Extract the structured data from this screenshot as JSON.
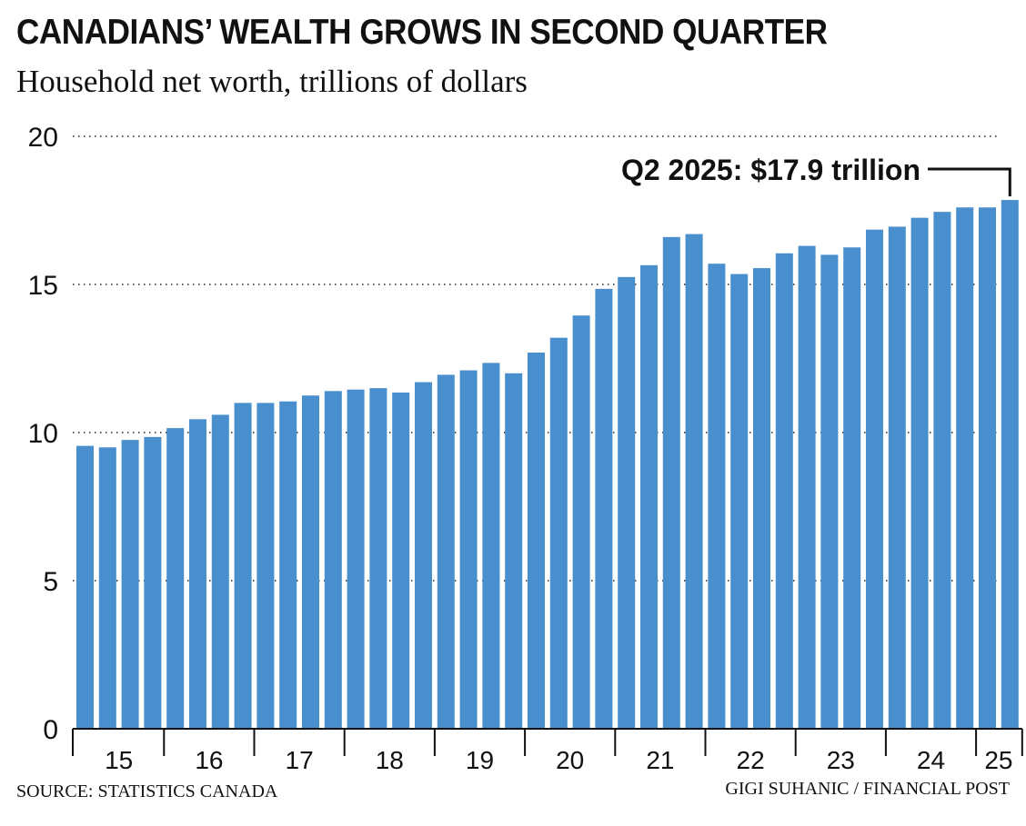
{
  "header": {
    "title": "CANADIANS’ WEALTH GROWS IN SECOND QUARTER",
    "subtitle": "Household net worth, trillions of dollars"
  },
  "footer": {
    "source": "SOURCE: STATISTICS CANADA",
    "credit": "GIGI SUHANIC / FINANCIAL POST"
  },
  "colors": {
    "bar": "#4a8fcd",
    "text": "#111111"
  },
  "chart_data": {
    "type": "bar",
    "title": "CANADIANS’ WEALTH GROWS IN SECOND QUARTER",
    "subtitle": "Household net worth, trillions of dollars",
    "xlabel": "",
    "ylabel": "",
    "ylim": [
      0,
      20
    ],
    "yticks": [
      0,
      5,
      10,
      15,
      20
    ],
    "grid": "horizontal dotted",
    "year_labels": [
      "15",
      "16",
      "17",
      "18",
      "19",
      "20",
      "21",
      "22",
      "23",
      "24",
      "25"
    ],
    "categories": [
      "2015 Q1",
      "2015 Q2",
      "2015 Q3",
      "2015 Q4",
      "2016 Q1",
      "2016 Q2",
      "2016 Q3",
      "2016 Q4",
      "2017 Q1",
      "2017 Q2",
      "2017 Q3",
      "2017 Q4",
      "2018 Q1",
      "2018 Q2",
      "2018 Q3",
      "2018 Q4",
      "2019 Q1",
      "2019 Q2",
      "2019 Q3",
      "2019 Q4",
      "2020 Q1",
      "2020 Q2",
      "2020 Q3",
      "2020 Q4",
      "2021 Q1",
      "2021 Q2",
      "2021 Q3",
      "2021 Q4",
      "2022 Q1",
      "2022 Q2",
      "2022 Q3",
      "2022 Q4",
      "2023 Q1",
      "2023 Q2",
      "2023 Q3",
      "2023 Q4",
      "2024 Q1",
      "2024 Q2",
      "2024 Q3",
      "2024 Q4",
      "2025 Q1",
      "2025 Q2"
    ],
    "values": [
      9.55,
      9.5,
      9.75,
      9.85,
      10.15,
      10.45,
      10.6,
      11.0,
      11.0,
      11.05,
      11.25,
      11.4,
      11.45,
      11.5,
      11.35,
      11.7,
      11.95,
      12.1,
      12.35,
      12.0,
      12.7,
      13.2,
      13.95,
      14.85,
      15.25,
      15.65,
      16.6,
      16.7,
      15.7,
      15.35,
      15.55,
      16.05,
      16.3,
      16.0,
      16.25,
      16.85,
      16.95,
      17.25,
      17.45,
      17.6,
      17.6,
      17.85
    ],
    "annotation": {
      "text": "Q2 2025: $17.9 trillion",
      "category": "2025 Q2",
      "value": 17.9
    }
  }
}
